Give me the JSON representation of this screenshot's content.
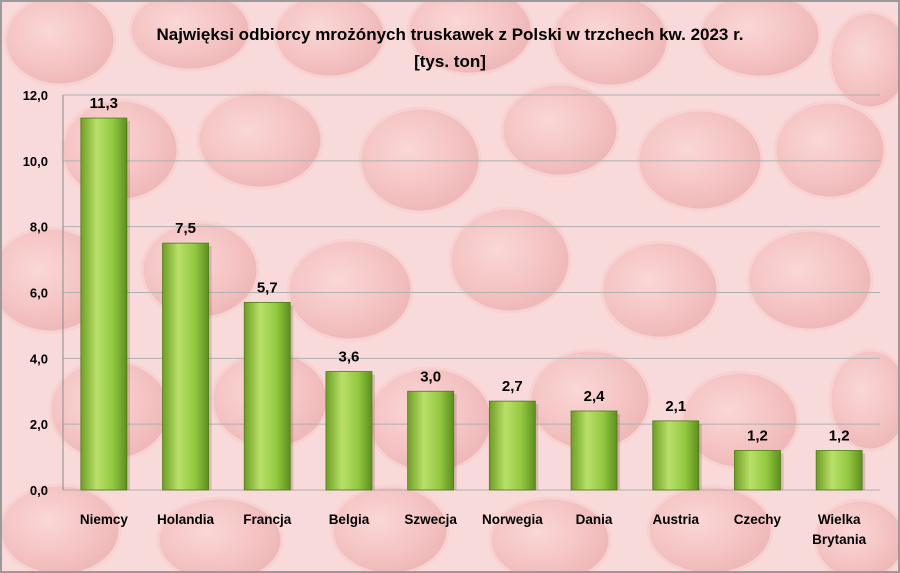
{
  "chart_data": {
    "type": "bar",
    "title": "Najwięksi odbiorcy mrożónych truskawek z Polski w trzchech kw. 2023 r.",
    "subtitle": "[tys. ton]",
    "categories": [
      "Niemcy",
      "Holandia",
      "Francja",
      "Belgia",
      "Szwecja",
      "Norwegia",
      "Dania",
      "Austria",
      "Czechy",
      "Wielka Brytania"
    ],
    "category_lines": [
      [
        "Niemcy"
      ],
      [
        "Holandia"
      ],
      [
        "Francja"
      ],
      [
        "Belgia"
      ],
      [
        "Szwecja"
      ],
      [
        "Norwegia"
      ],
      [
        "Dania"
      ],
      [
        "Austria"
      ],
      [
        "Czechy"
      ],
      [
        "Wielka",
        "Brytania"
      ]
    ],
    "values": [
      11.3,
      7.5,
      5.7,
      3.6,
      3.0,
      2.7,
      2.4,
      2.1,
      1.2,
      1.2
    ],
    "value_labels": [
      "11,3",
      "7,5",
      "5,7",
      "3,6",
      "3,0",
      "2,7",
      "2,4",
      "2,1",
      "1,2",
      "1,2"
    ],
    "yticks": [
      "0,0",
      "2,0",
      "4,0",
      "6,0",
      "8,0",
      "10,0",
      "12,0"
    ],
    "ylim": [
      0,
      12
    ],
    "grid": true,
    "legend": "none",
    "colors": {
      "bar_light": "#b5dc5a",
      "bar_mid": "#8cc63f",
      "bar_dark": "#5d8f1e",
      "background_light": "#f6d3d3",
      "background_berry": "#e88a8a",
      "grid": "#b0b0b0"
    }
  }
}
